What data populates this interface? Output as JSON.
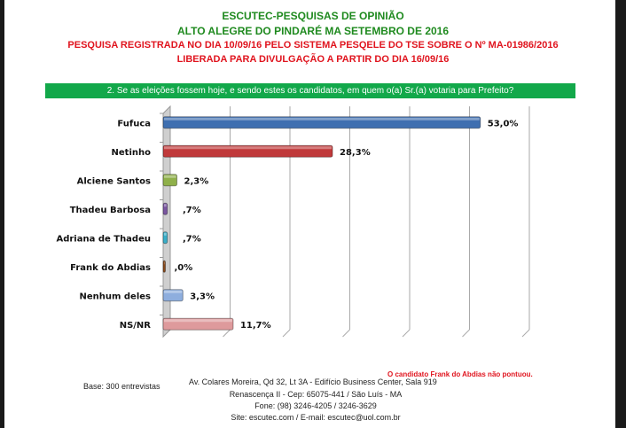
{
  "header": {
    "line1": "ESCUTEC-PESQUISAS DE OPINIÃO",
    "line2": "ALTO ALEGRE DO PINDARÉ MA SETEMBRO DE 2016",
    "line3": "PESQUISA REGISTRADA NO DIA 10/09/16 PELO SISTEMA PESQELE DO TSE SOBRE O Nº MA-01986/2016",
    "line4": "LIBERADA PARA DIVULGAÇÃO A PARTIR DO DIA 16/09/16",
    "question": "2. Se as eleições fossem hoje, e sendo estes os candidatos, em quem o(a) Sr.(a) votaria para Prefeito?"
  },
  "chart_data": {
    "type": "bar",
    "orientation": "horizontal",
    "style": "3d",
    "categories": [
      "Fufuca",
      "Netinho",
      "Alciene Santos",
      "Thadeu Barbosa",
      "Adriana de Thadeu",
      "Frank do Abdias",
      "Nenhum deles",
      "NS/NR"
    ],
    "values": [
      53.0,
      28.3,
      2.3,
      0.7,
      0.7,
      0.0,
      3.3,
      11.7
    ],
    "data_labels": [
      "53,0%",
      "28,3%",
      "2,3%",
      ",7%",
      ",7%",
      ",0%",
      "3,3%",
      "11,7%"
    ],
    "colors": [
      "#3f6fb0",
      "#c0393a",
      "#8fb04a",
      "#7a56a0",
      "#3aaec8",
      "#8a4a1a",
      "#8eaede",
      "#de9a9c"
    ],
    "xlim": [
      0,
      60
    ],
    "grid": true
  },
  "footer": {
    "note": "O candidato Frank do Abdias não pontuou.",
    "base": "Base: 300 entrevistas",
    "address1": "Av. Colares Moreira, Qd 32, Lt 3A - Edifício Business Center, Sala 919",
    "address2": "Renascença II - Cep: 65075-441 / São Luís - MA",
    "phone": "Fone: (98) 3246-4205 / 3246-3629",
    "site": "Site: escutec.com / E-mail: escutec@uol.com.br"
  }
}
